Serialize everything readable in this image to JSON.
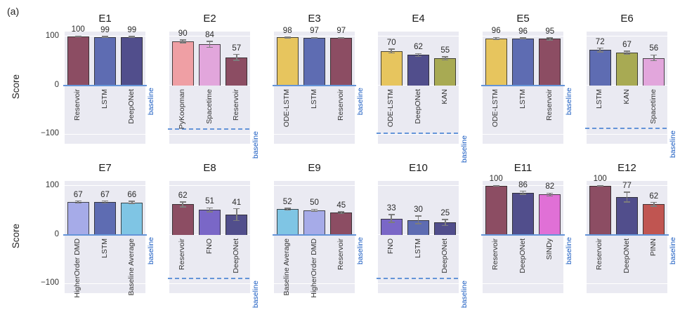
{
  "panel_label": "(a)",
  "ylabel": "Score",
  "baseline_label": "baseline",
  "colors": {
    "Reservoir": "#8c4d63",
    "LSTM": "#5e6cb2",
    "DeepONet": "#514e8c",
    "PyKoopman": "#ef9fa4",
    "Spacetime": "#e2a6dc",
    "ODE-LSTM": "#e7c55e",
    "KAN": "#a8aa53",
    "HigherOrder DMD": "#a6abe8",
    "Baseline Average": "#7fc5e4",
    "FNO": "#7a67c7",
    "SINDy": "#e070d6",
    "PINN": "#c05551",
    "baseline_line": "#6494d8",
    "baseline_text": "#1558c0",
    "plot_background": "#eaeaf2"
  },
  "axis": {
    "ylim": [
      -100,
      100
    ],
    "yticks": [
      100,
      0,
      -100
    ],
    "grid": true
  },
  "chart_data": [
    {
      "title": "E1",
      "type": "bar",
      "categories": [
        "Reservoir",
        "LSTM",
        "DeepONet"
      ],
      "values": [
        100,
        99,
        99
      ],
      "errors": [
        1,
        1,
        1
      ],
      "baseline": 0
    },
    {
      "title": "E2",
      "type": "bar",
      "categories": [
        "PyKoopman",
        "Spacetime",
        "Reservoir"
      ],
      "values": [
        90,
        84,
        57
      ],
      "errors": [
        3,
        6,
        6
      ],
      "baseline": -90
    },
    {
      "title": "E3",
      "type": "bar",
      "categories": [
        "ODE-LSTM",
        "LSTM",
        "Reservoir"
      ],
      "values": [
        98,
        97,
        97
      ],
      "errors": [
        1,
        1,
        1
      ],
      "baseline": 0
    },
    {
      "title": "E4",
      "type": "bar",
      "categories": [
        "ODE-LSTM",
        "DeepONet",
        "KAN"
      ],
      "values": [
        70,
        62,
        55
      ],
      "errors": [
        4,
        3,
        3
      ],
      "baseline": -98
    },
    {
      "title": "E5",
      "type": "bar",
      "categories": [
        "ODE-LSTM",
        "LSTM",
        "Reservoir"
      ],
      "values": [
        96,
        96,
        95
      ],
      "errors": [
        2,
        1,
        2
      ],
      "baseline": 0
    },
    {
      "title": "E6",
      "type": "bar",
      "categories": [
        "LSTM",
        "KAN",
        "Spacetime"
      ],
      "values": [
        72,
        67,
        56
      ],
      "errors": [
        4,
        3,
        6
      ],
      "baseline": -88
    },
    {
      "title": "E7",
      "type": "bar",
      "categories": [
        "HigherOrder DMD",
        "LSTM",
        "Baseline Average"
      ],
      "values": [
        67,
        67,
        66
      ],
      "errors": [
        2,
        2,
        2
      ],
      "baseline": 0
    },
    {
      "title": "E8",
      "type": "bar",
      "categories": [
        "Reservoir",
        "FNO",
        "DeepONet"
      ],
      "values": [
        62,
        51,
        41
      ],
      "errors": [
        5,
        4,
        12
      ],
      "baseline": -90
    },
    {
      "title": "E9",
      "type": "bar",
      "categories": [
        "Baseline Average",
        "HigherOrder DMD",
        "Reservoir"
      ],
      "values": [
        52,
        50,
        45
      ],
      "errors": [
        2,
        2,
        2
      ],
      "baseline": 0
    },
    {
      "title": "E10",
      "type": "bar",
      "categories": [
        "FNO",
        "LSTM",
        "DeepONet"
      ],
      "values": [
        33,
        30,
        25
      ],
      "errors": [
        8,
        8,
        6
      ],
      "baseline": -90
    },
    {
      "title": "E11",
      "type": "bar",
      "categories": [
        "Reservoir",
        "DeepONet",
        "SINDy"
      ],
      "values": [
        100,
        86,
        82
      ],
      "errors": [
        1,
        3,
        3
      ],
      "baseline": 0
    },
    {
      "title": "E12",
      "type": "bar",
      "categories": [
        "Reservoir",
        "DeepONet",
        "PINN"
      ],
      "values": [
        100,
        77,
        62
      ],
      "errors": [
        1,
        10,
        4
      ],
      "baseline": 0
    }
  ]
}
